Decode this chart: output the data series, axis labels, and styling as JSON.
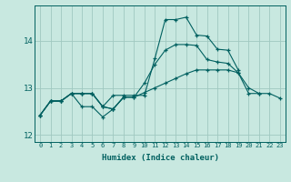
{
  "background_color": "#c8e8e0",
  "grid_color": "#a0c8c0",
  "line_color": "#006060",
  "x_values": [
    0,
    1,
    2,
    3,
    4,
    5,
    6,
    7,
    8,
    9,
    10,
    11,
    12,
    13,
    14,
    15,
    16,
    17,
    18,
    19,
    20,
    21,
    22,
    23
  ],
  "line1": [
    12.42,
    12.72,
    12.72,
    12.88,
    12.88,
    12.88,
    12.6,
    12.84,
    12.84,
    12.84,
    12.84,
    13.62,
    14.45,
    14.45,
    14.5,
    14.12,
    14.1,
    13.82,
    13.8,
    13.38,
    null,
    null,
    null,
    null
  ],
  "line2": [
    12.42,
    12.72,
    12.72,
    12.88,
    12.88,
    12.88,
    12.6,
    12.55,
    12.8,
    12.8,
    13.1,
    13.5,
    13.8,
    13.92,
    13.92,
    13.9,
    13.6,
    13.55,
    13.52,
    13.32,
    12.88,
    12.88,
    null,
    null
  ],
  "line3": [
    12.42,
    12.72,
    12.72,
    12.88,
    12.88,
    12.88,
    12.6,
    12.55,
    12.8,
    12.8,
    12.9,
    13.0,
    13.1,
    13.2,
    13.3,
    13.38,
    13.38,
    13.38,
    13.38,
    13.32,
    13.0,
    12.88,
    12.88,
    12.78
  ],
  "line4": [
    12.42,
    12.72,
    12.72,
    12.88,
    12.6,
    12.6,
    12.38,
    12.55,
    12.8,
    null,
    null,
    null,
    null,
    null,
    null,
    null,
    null,
    null,
    null,
    null,
    null,
    null,
    null,
    null
  ],
  "ylim": [
    11.85,
    14.75
  ],
  "yticks": [
    12,
    13,
    14
  ],
  "xlabel": "Humidex (Indice chaleur)"
}
